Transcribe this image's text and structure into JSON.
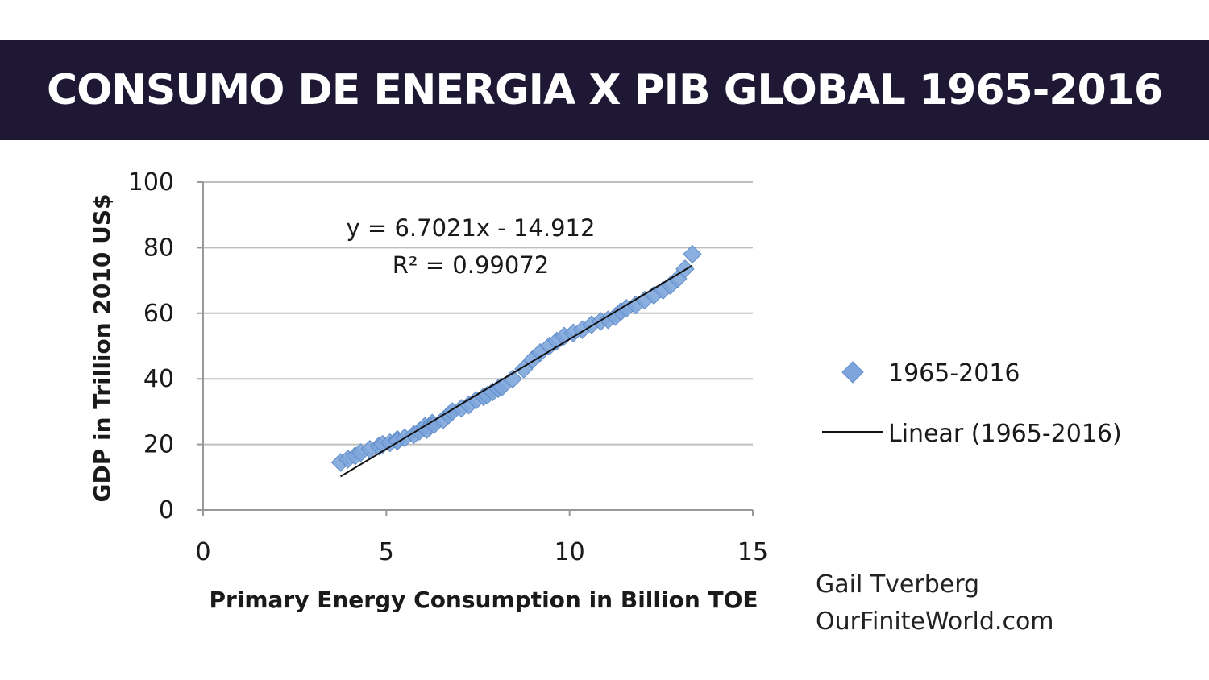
{
  "banner": {
    "title": "CONSUMO DE ENERGIA X PIB GLOBAL 1965-2016"
  },
  "credit": {
    "author": "Gail Tverberg",
    "site": "OurFiniteWorld.com"
  },
  "colors": {
    "banner_bg": "#1f1835",
    "marker": "#7ea6dc",
    "trendline": "#111111",
    "grid": "#bfbfbf"
  },
  "chart_data": {
    "type": "scatter",
    "xlabel": "Primary Energy Consumption in Billion TOE",
    "ylabel": "GDP in Trillion 2010 US$",
    "xlim": [
      0,
      15
    ],
    "ylim": [
      0,
      100
    ],
    "xticks": [
      "0",
      "5",
      "10",
      "15"
    ],
    "yticks": [
      "0",
      "20",
      "40",
      "60",
      "80",
      "100"
    ],
    "grid": "horizontal",
    "legend_position": "right",
    "series": [
      {
        "name": "1965-2016",
        "marker": "diamond",
        "x": [
          3.75,
          3.95,
          4.15,
          4.3,
          4.55,
          4.8,
          4.9,
          5.1,
          5.3,
          5.3,
          5.5,
          5.75,
          5.9,
          6.05,
          6.25,
          6.2,
          6.1,
          6.3,
          6.55,
          6.7,
          6.8,
          7.05,
          7.25,
          7.45,
          7.65,
          7.75,
          7.9,
          8.05,
          8.15,
          8.45,
          8.75,
          9.0,
          9.2,
          9.45,
          9.65,
          9.85,
          10.1,
          10.35,
          10.6,
          10.85,
          11.05,
          11.25,
          11.4,
          11.55,
          11.8,
          12.05,
          12.3,
          12.55,
          12.75,
          12.95,
          13.15,
          13.35
        ],
        "y": [
          14.5,
          15.5,
          16.5,
          17.5,
          18.5,
          19.5,
          20.0,
          20.5,
          21.5,
          21.0,
          22.0,
          23.0,
          24.0,
          25.5,
          26.5,
          25.5,
          24.5,
          26.0,
          27.5,
          29.0,
          30.0,
          31.0,
          32.0,
          33.5,
          34.5,
          35.0,
          36.0,
          37.0,
          37.5,
          40.0,
          43.0,
          46.0,
          48.0,
          50.0,
          51.5,
          53.0,
          54.0,
          55.0,
          56.5,
          57.5,
          58.0,
          59.0,
          60.5,
          61.5,
          62.5,
          64.0,
          65.5,
          67.0,
          68.5,
          70.5,
          73.5,
          78.0
        ]
      }
    ],
    "trendline": {
      "name": "Linear (1965-2016)",
      "slope": 6.7021,
      "intercept": -14.912,
      "x_range": [
        3.75,
        13.35
      ],
      "equation": "y = 6.7021x - 14.912",
      "r_squared": "R² = 0.99072"
    }
  }
}
